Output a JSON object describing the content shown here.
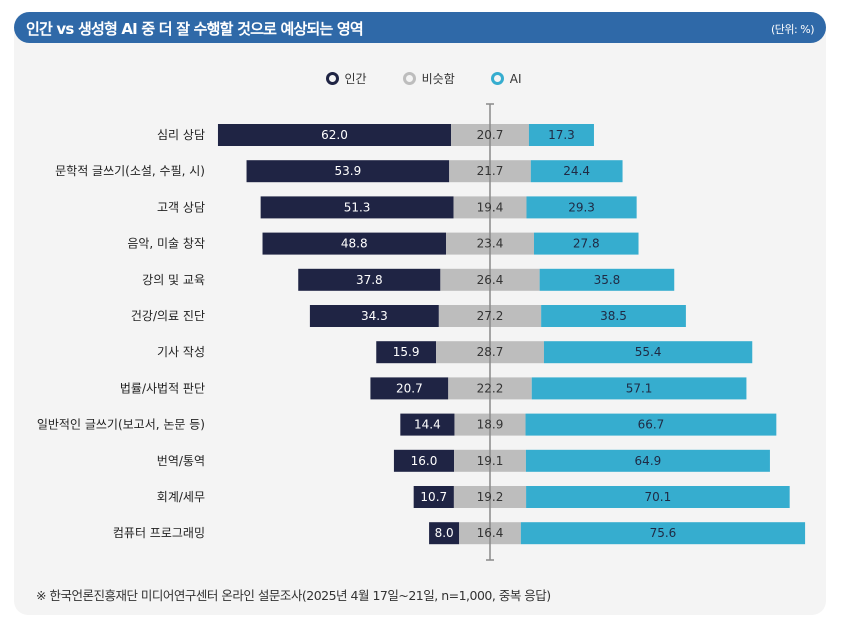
{
  "header": {
    "title": "인간 vs 생성형 AI 중 더 잘 수행할 것으로 예상되는 영역",
    "unit": "(단위: %)"
  },
  "footer": "※ 한국언론진흥재단 미디어연구센터 온라인 설문조사(2025년 4월 17일~21일, n=1,000, 중복 응답)",
  "chart_data": {
    "type": "bar",
    "orientation": "horizontal-diverging-stacked",
    "categories": [
      "심리 상담",
      "문학적 글쓰기(소설, 수필, 시)",
      "고객 상담",
      "음악, 미술 창작",
      "강의 및 교육",
      "건강/의료 진단",
      "기사 작성",
      "법률/사법적 판단",
      "일반적인 글쓰기(보고서, 논문 등)",
      "번역/통역",
      "회계/세무",
      "컴퓨터 프로그래밍"
    ],
    "series": [
      {
        "name": "인간",
        "color": "#1f2444",
        "values": [
          62.0,
          53.9,
          51.3,
          48.8,
          37.8,
          34.3,
          15.9,
          20.7,
          14.4,
          16.0,
          10.7,
          8.0
        ]
      },
      {
        "name": "비슷함",
        "color": "#bdbdbd",
        "values": [
          20.7,
          21.7,
          19.4,
          23.4,
          26.4,
          27.2,
          28.7,
          22.2,
          18.9,
          19.1,
          19.2,
          16.4
        ]
      },
      {
        "name": "AI",
        "color": "#36adcf",
        "values": [
          17.3,
          24.4,
          29.3,
          27.8,
          35.8,
          38.5,
          55.4,
          57.1,
          66.7,
          64.9,
          70.1,
          75.6
        ]
      }
    ],
    "legend_placement": "top-center",
    "grid": false
  }
}
